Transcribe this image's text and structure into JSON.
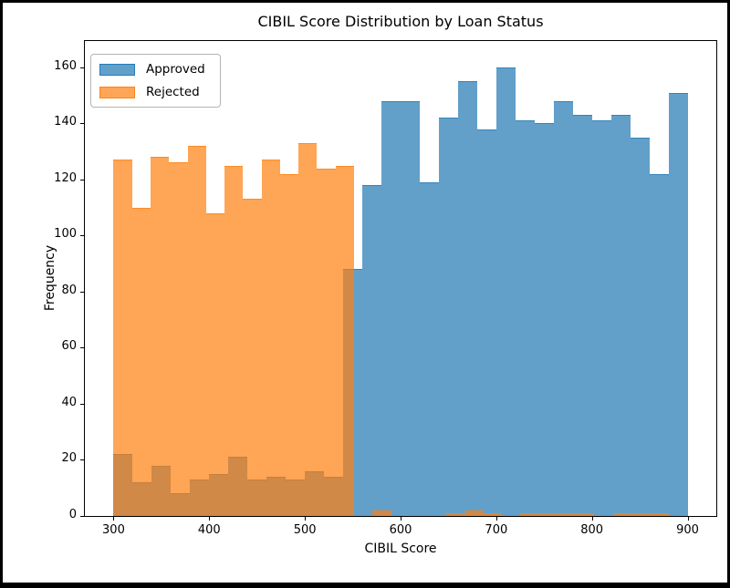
{
  "figure": {
    "frame_color": "#000000",
    "background_color": "#ffffff"
  },
  "chart_data": {
    "type": "histogram",
    "title": "CIBIL Score Distribution by Loan Status",
    "xlabel": "CIBIL Score",
    "ylabel": "Frequency",
    "xlim": [
      270,
      930
    ],
    "ylim": [
      0,
      169.4
    ],
    "xticks": [
      300,
      400,
      500,
      600,
      700,
      800,
      900
    ],
    "yticks": [
      0,
      20,
      40,
      60,
      80,
      100,
      120,
      140,
      160
    ],
    "grid": false,
    "legend_position": "upper left",
    "series": [
      {
        "name": "Approved",
        "color": "#1f77b4",
        "alpha": 0.7,
        "bin_start": 300,
        "bin_width": 20,
        "counts": [
          22,
          12,
          18,
          8,
          13,
          15,
          21,
          13,
          14,
          13,
          16,
          14,
          88,
          118,
          148,
          148,
          119,
          142,
          155,
          138,
          160,
          141,
          140,
          148,
          143,
          141,
          143,
          135,
          122,
          151
        ]
      },
      {
        "name": "Rejected",
        "color": "#ff7f0e",
        "alpha": 0.7,
        "bin_start": 300,
        "bin_width": 19.3333,
        "counts": [
          127,
          110,
          128,
          126,
          132,
          108,
          125,
          113,
          127,
          122,
          133,
          124,
          125,
          0,
          2,
          0,
          0,
          0,
          1,
          2,
          1,
          0,
          1,
          1,
          1,
          1,
          0,
          1,
          1,
          1
        ]
      }
    ]
  }
}
